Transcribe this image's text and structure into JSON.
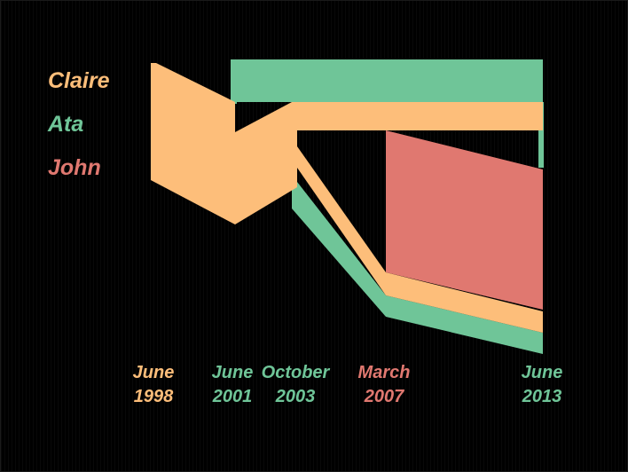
{
  "people": [
    {
      "name": "Claire",
      "color": "#FDBE7A"
    },
    {
      "name": "Ata",
      "color": "#6FC598"
    },
    {
      "name": "John",
      "color": "#E07870"
    }
  ],
  "events": [
    {
      "month": "June",
      "year": "1998",
      "color": "#FDBE7A"
    },
    {
      "month": "June",
      "year": "2001",
      "color": "#6FC598"
    },
    {
      "month": "October",
      "year": "2003",
      "color": "#6FC598"
    },
    {
      "month": "March",
      "year": "2007",
      "color": "#E07870"
    },
    {
      "month": "June",
      "year": "2013",
      "color": "#6FC598"
    }
  ]
}
